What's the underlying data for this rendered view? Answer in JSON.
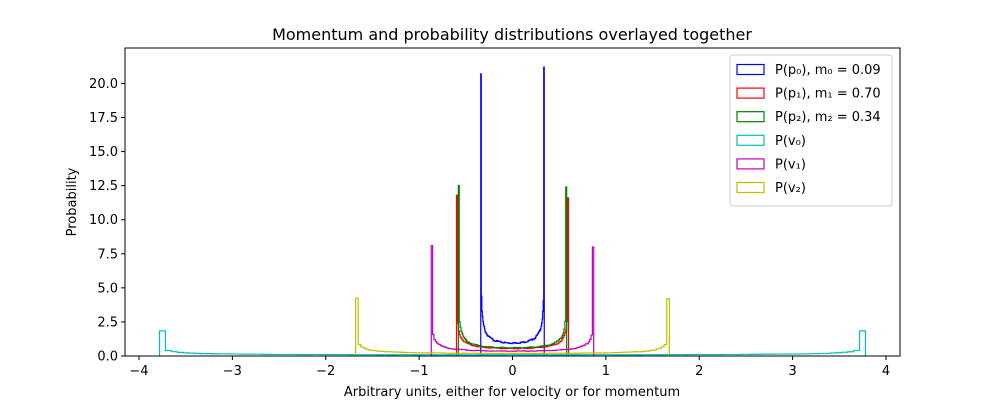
{
  "chart_data": {
    "type": "histogram",
    "title": "Momentum and probability distributions overlayed together",
    "xlabel": "Arbitrary units, either for velocity or for momentum",
    "ylabel": "Probability",
    "xlim": [
      -4.15,
      4.15
    ],
    "ylim": [
      0,
      22.6
    ],
    "xticks": [
      -4,
      -3,
      -2,
      -1,
      0,
      1,
      2,
      3,
      4
    ],
    "xtick_labels": [
      "−4",
      "−3",
      "−2",
      "−1",
      "0",
      "1",
      "2",
      "3",
      "4"
    ],
    "yticks": [
      0,
      2.5,
      5,
      7.5,
      10,
      12.5,
      15,
      17.5,
      20
    ],
    "ytick_labels": [
      "0.0",
      "2.5",
      "5.0",
      "7.5",
      "10.0",
      "12.5",
      "15.0",
      "17.5",
      "20.0"
    ],
    "grid": false,
    "legend_position": "top-right",
    "series": [
      {
        "label": "P(p0), m0 = 0.09",
        "label_main": "P(p₀), m₀ = 0.09",
        "color": "#0000ff",
        "edge": 0.34,
        "peak_left": 20.7,
        "peak_right": 21.2,
        "min": 0.95
      },
      {
        "label": "P(p1), m1 = 0.70",
        "label_main": "P(p₁), m₁ = 0.70",
        "color": "#ff0000",
        "edge": 0.6,
        "peak_left": 11.8,
        "peak_right": 11.6,
        "min": 0.55
      },
      {
        "label": "P(p2), m2 = 0.34",
        "label_main": "P(p₂), m₂ = 0.34",
        "color": "#008000",
        "edge": 0.58,
        "peak_left": 12.5,
        "peak_right": 12.4,
        "min": 0.6
      },
      {
        "label": "P(v0)",
        "label_main": "P(v₀)",
        "color": "#00bfbf",
        "edge": 3.78,
        "peak_left": 1.85,
        "peak_right": 1.85,
        "min": 0.09
      },
      {
        "label": "P(v1)",
        "label_main": "P(v₁)",
        "color": "#bf00bf",
        "edge": 0.87,
        "peak_left": 8.1,
        "peak_right": 8.0,
        "min": 0.36
      },
      {
        "label": "P(v2)",
        "label_main": "P(v₂)",
        "color": "#bfbf00",
        "edge": 1.68,
        "peak_left": 4.25,
        "peak_right": 4.2,
        "min": 0.19
      }
    ]
  }
}
